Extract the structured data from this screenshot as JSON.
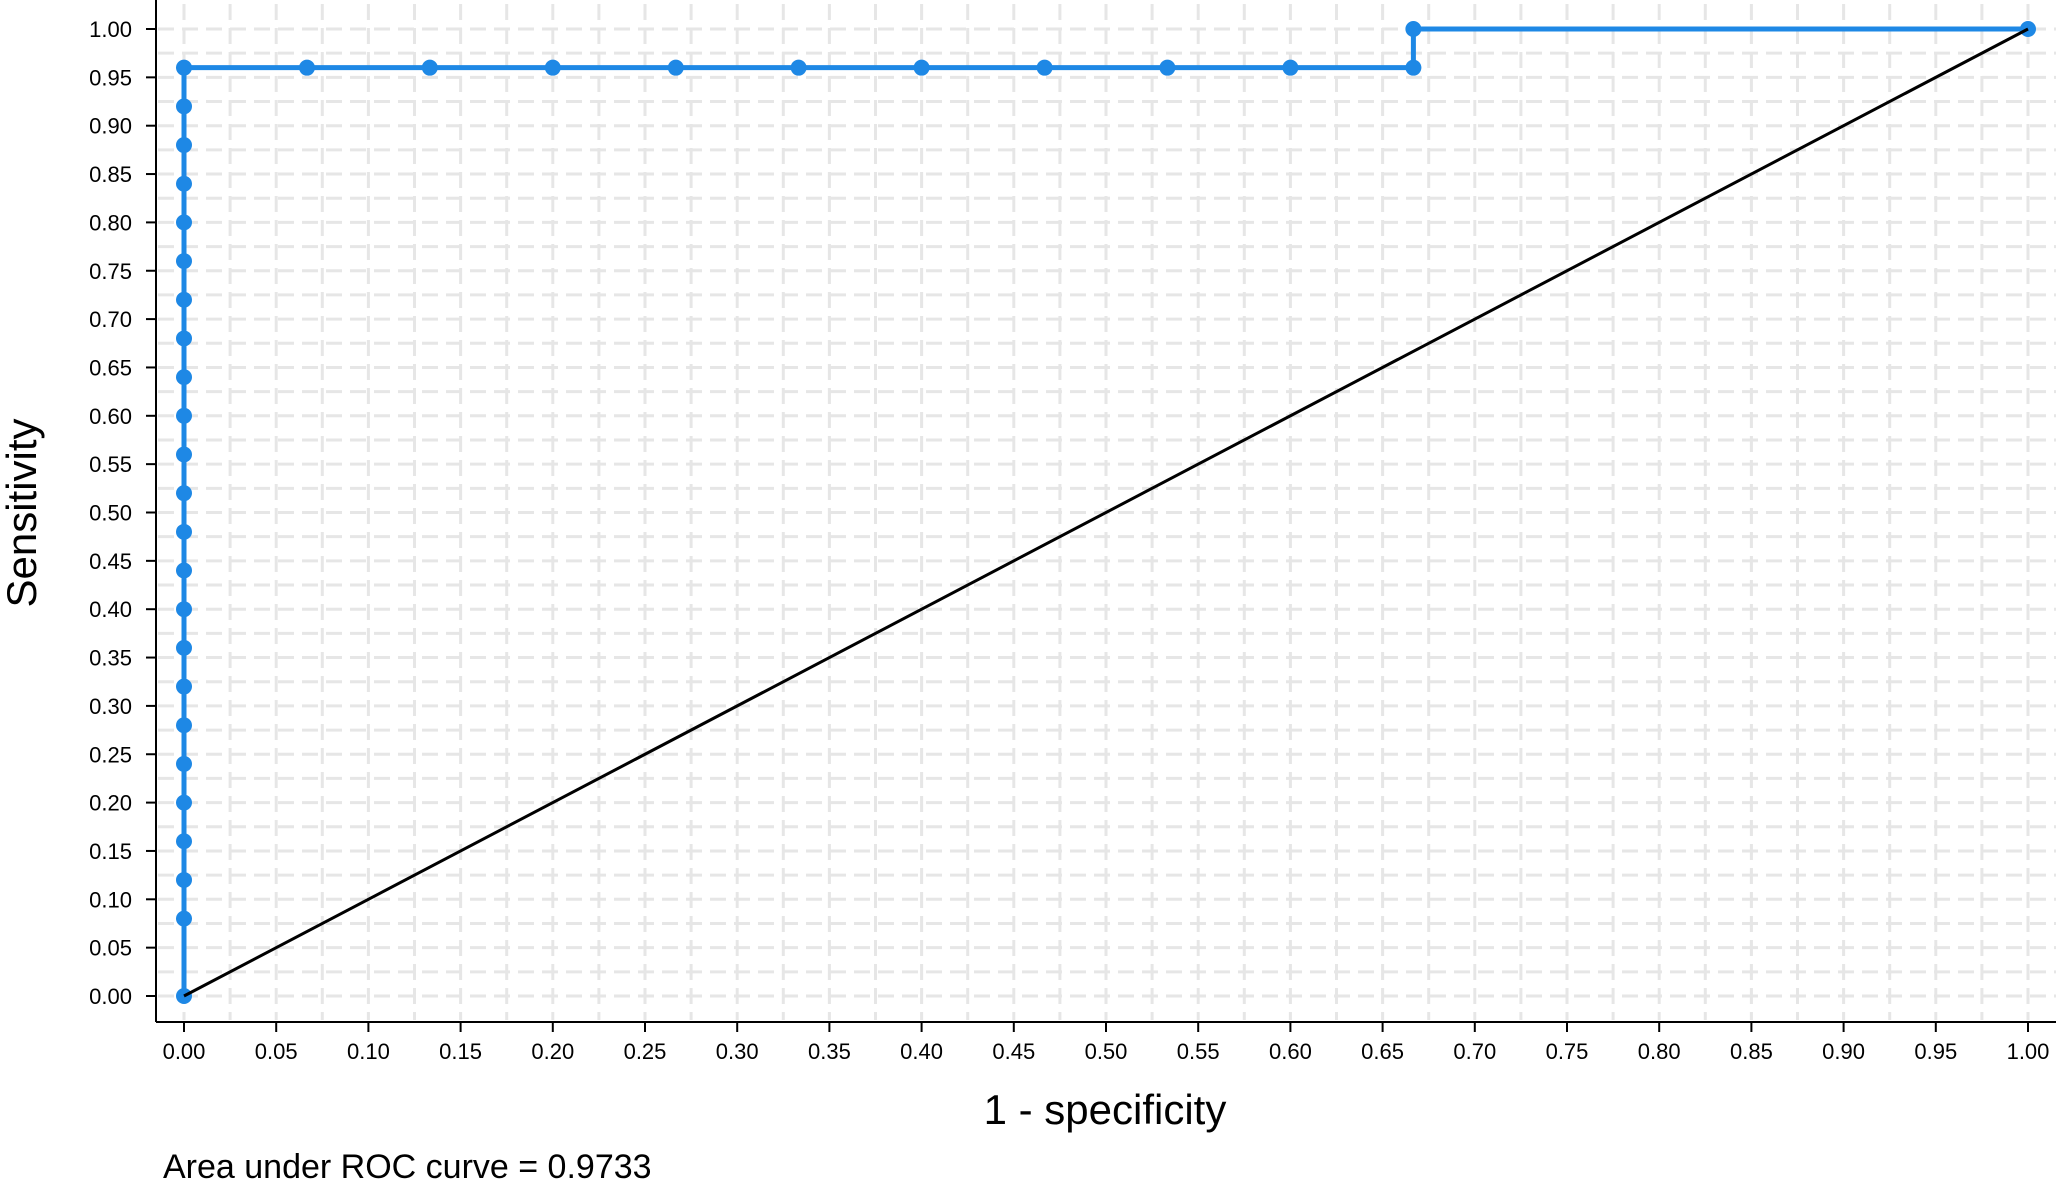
{
  "chart_data": {
    "type": "line",
    "title": "",
    "xlabel": "1 - specificity",
    "ylabel": "Sensitivity",
    "xlim": [
      0,
      1
    ],
    "ylim": [
      0,
      1
    ],
    "x_ticks": [
      "0.00",
      "0.05",
      "0.10",
      "0.15",
      "0.20",
      "0.25",
      "0.30",
      "0.35",
      "0.40",
      "0.45",
      "0.50",
      "0.55",
      "0.60",
      "0.65",
      "0.70",
      "0.75",
      "0.80",
      "0.85",
      "0.90",
      "0.95",
      "1.00"
    ],
    "y_ticks": [
      "0.00",
      "0.05",
      "0.10",
      "0.15",
      "0.20",
      "0.25",
      "0.30",
      "0.35",
      "0.40",
      "0.45",
      "0.50",
      "0.55",
      "0.60",
      "0.65",
      "0.70",
      "0.75",
      "0.80",
      "0.85",
      "0.90",
      "0.95",
      "1.00"
    ],
    "grid": true,
    "series": [
      {
        "color": "#1e88e5",
        "markers": true,
        "points": [
          [
            0,
            0
          ],
          [
            0,
            0.08
          ],
          [
            0,
            0.12
          ],
          [
            0,
            0.16
          ],
          [
            0,
            0.2
          ],
          [
            0,
            0.24
          ],
          [
            0,
            0.28
          ],
          [
            0,
            0.32
          ],
          [
            0,
            0.36
          ],
          [
            0,
            0.4
          ],
          [
            0,
            0.44
          ],
          [
            0,
            0.48
          ],
          [
            0,
            0.52
          ],
          [
            0,
            0.56
          ],
          [
            0,
            0.6
          ],
          [
            0,
            0.64
          ],
          [
            0,
            0.68
          ],
          [
            0,
            0.72
          ],
          [
            0,
            0.76
          ],
          [
            0,
            0.8
          ],
          [
            0,
            0.84
          ],
          [
            0,
            0.88
          ],
          [
            0,
            0.92
          ],
          [
            0,
            0.96
          ],
          [
            0.0667,
            0.96
          ],
          [
            0.1333,
            0.96
          ],
          [
            0.2,
            0.96
          ],
          [
            0.2667,
            0.96
          ],
          [
            0.3333,
            0.96
          ],
          [
            0.4,
            0.96
          ],
          [
            0.4667,
            0.96
          ],
          [
            0.5333,
            0.96
          ],
          [
            0.6,
            0.96
          ],
          [
            0.6667,
            0.96
          ],
          [
            0.6667,
            1.0
          ],
          [
            1.0,
            1.0
          ]
        ]
      },
      {
        "color": "#000000",
        "markers": false,
        "points": [
          [
            0,
            0
          ],
          [
            1,
            1
          ]
        ]
      }
    ]
  },
  "note": "Area under ROC curve = 0.9733"
}
